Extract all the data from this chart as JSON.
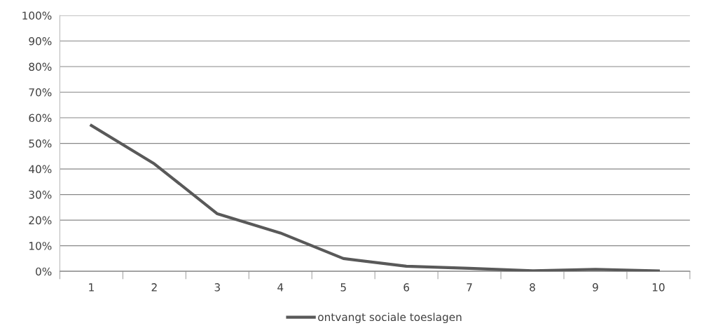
{
  "chart_data": {
    "type": "line",
    "categories": [
      "1",
      "2",
      "3",
      "4",
      "5",
      "6",
      "7",
      "8",
      "9",
      "10"
    ],
    "series": [
      {
        "name": "ontvangt sociale toeslagen",
        "color": "#595959",
        "values": [
          57,
          42,
          22.5,
          15,
          5,
          2,
          1.2,
          0.2,
          0.8,
          0.2
        ]
      }
    ],
    "ylim": [
      0,
      100
    ],
    "yticks": [
      {
        "value": 0,
        "label": "0%"
      },
      {
        "value": 10,
        "label": "10%"
      },
      {
        "value": 20,
        "label": "20%"
      },
      {
        "value": 30,
        "label": "30%"
      },
      {
        "value": 40,
        "label": "40%"
      },
      {
        "value": 50,
        "label": "50%"
      },
      {
        "value": 60,
        "label": "60%"
      },
      {
        "value": 70,
        "label": "70%"
      },
      {
        "value": 80,
        "label": "80%"
      },
      {
        "value": 90,
        "label": "90%"
      },
      {
        "value": 100,
        "label": "100%"
      }
    ],
    "grid": "y",
    "legend": "bottom",
    "marker": "none",
    "line_style": "solid"
  }
}
